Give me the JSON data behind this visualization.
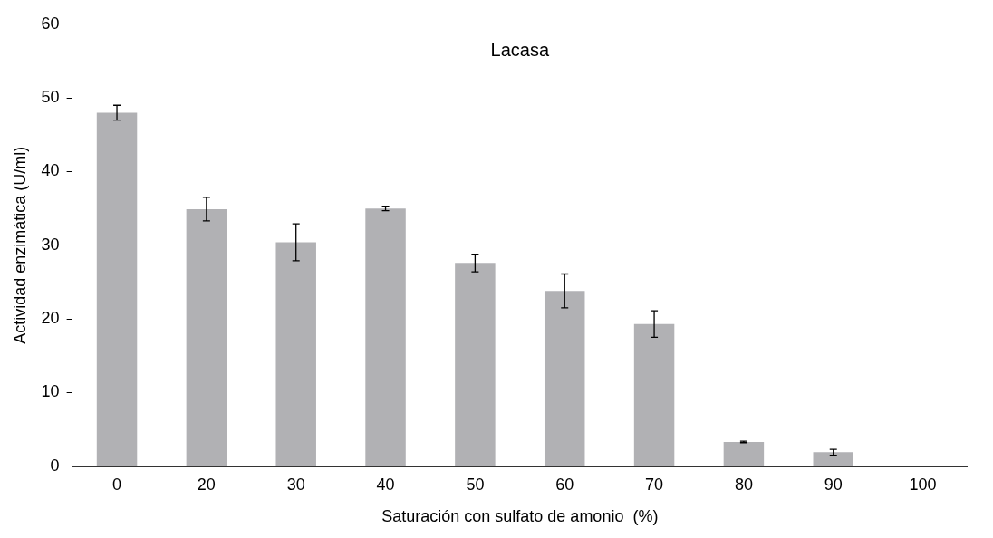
{
  "chart_data": {
    "type": "bar",
    "title": "Lacasa",
    "xlabel": "Saturación con sulfato de amonio  (%)",
    "ylabel": "Actividad enzimática (U/ml)",
    "categories": [
      "0",
      "20",
      "30",
      "40",
      "50",
      "60",
      "70",
      "80",
      "90",
      "100"
    ],
    "values": [
      48,
      34.9,
      30.4,
      35,
      27.6,
      23.8,
      19.3,
      3.3,
      1.9,
      0
    ],
    "errors": [
      1,
      1.6,
      2.5,
      0.3,
      1.2,
      2.3,
      1.8,
      0.1,
      0.4,
      null
    ],
    "color": "#b1b1b4",
    "ylim": [
      0,
      60
    ],
    "yticks": [
      0,
      10,
      20,
      30,
      40,
      50,
      60
    ],
    "grid": false,
    "legend": false
  }
}
